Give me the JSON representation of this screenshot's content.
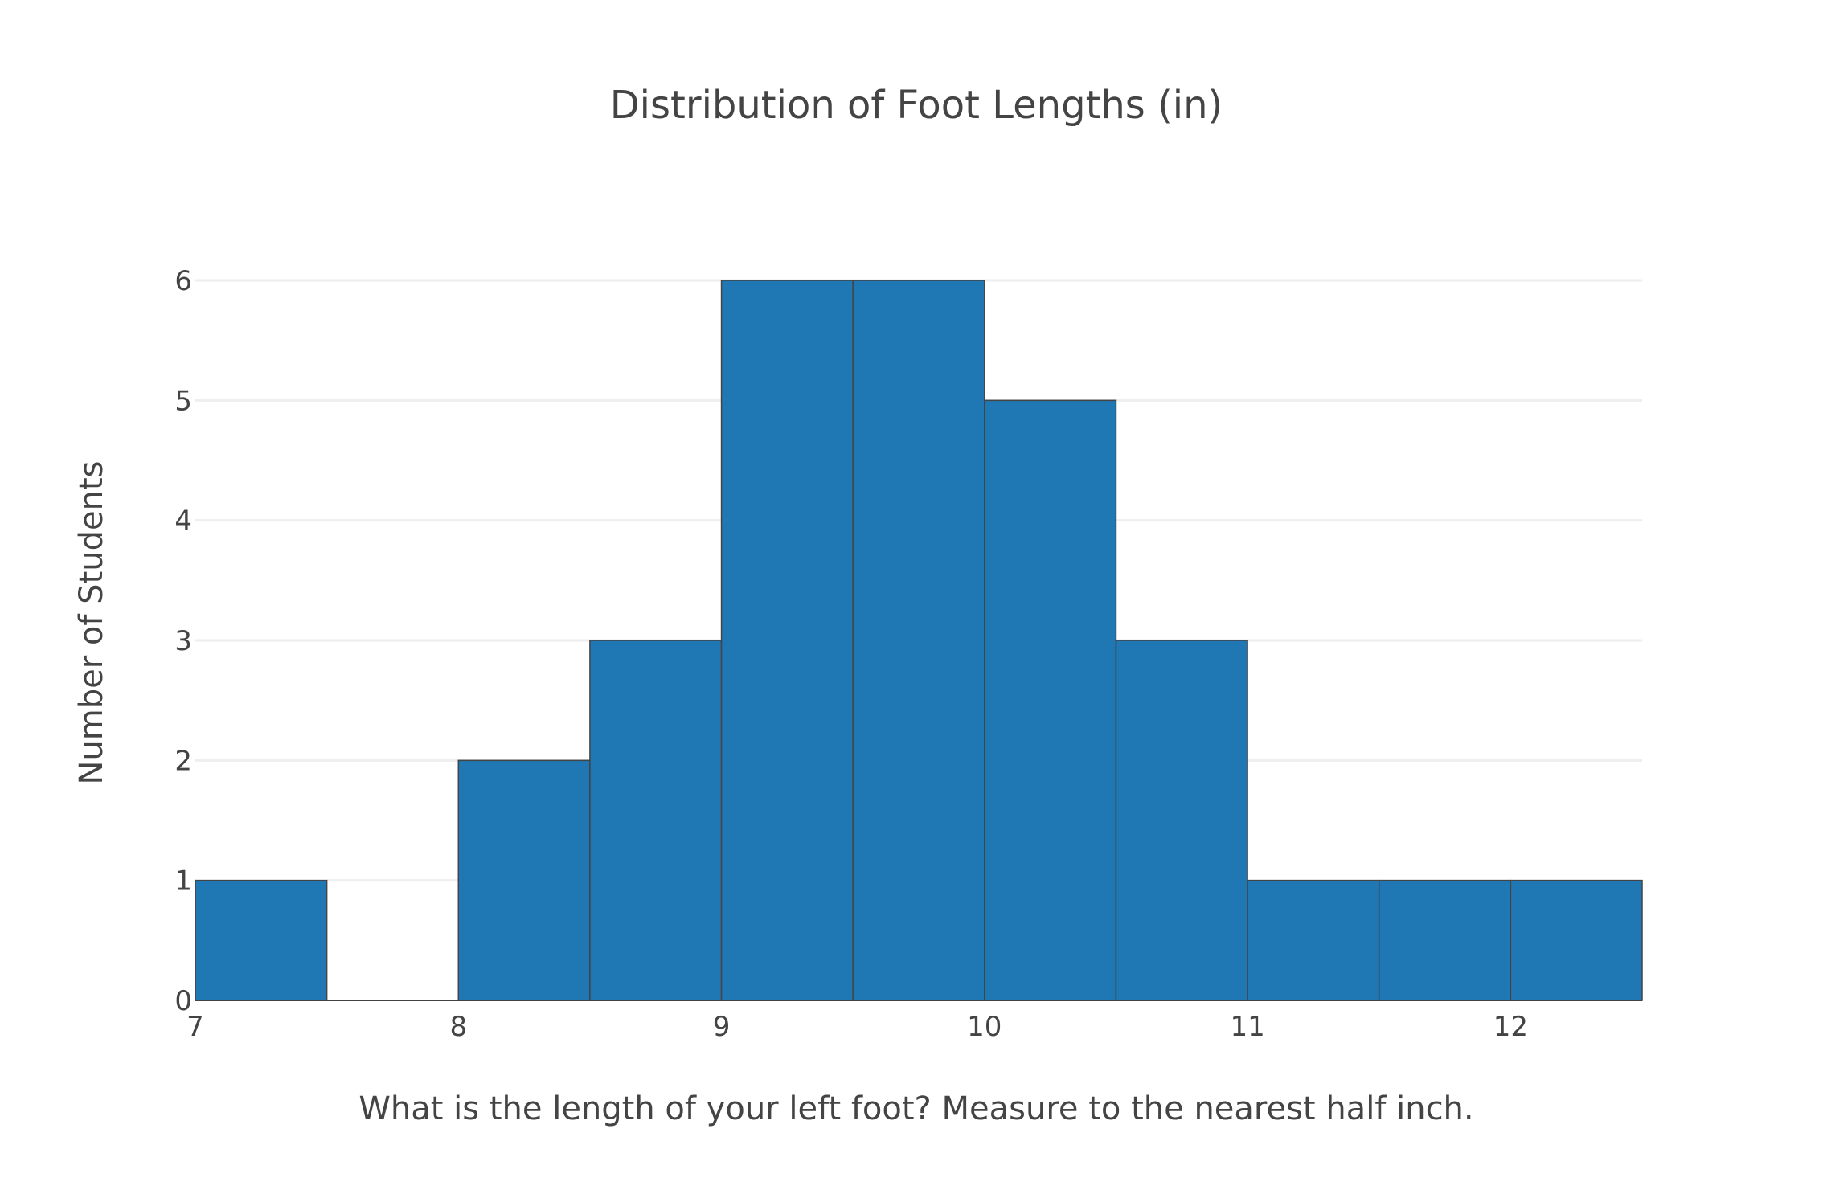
{
  "chart_data": {
    "type": "bar",
    "title": "Distribution of Foot Lengths (in)",
    "xlabel": "What is the length of your left foot? Measure to the nearest half inch.",
    "ylabel": "Number of Students",
    "bins": [
      {
        "start": 7.0,
        "end": 7.5,
        "count": 1
      },
      {
        "start": 7.5,
        "end": 8.0,
        "count": 0
      },
      {
        "start": 8.0,
        "end": 8.5,
        "count": 2
      },
      {
        "start": 8.5,
        "end": 9.0,
        "count": 3
      },
      {
        "start": 9.0,
        "end": 9.5,
        "count": 6
      },
      {
        "start": 9.5,
        "end": 10.0,
        "count": 6
      },
      {
        "start": 10.0,
        "end": 10.5,
        "count": 5
      },
      {
        "start": 10.5,
        "end": 11.0,
        "count": 3
      },
      {
        "start": 11.0,
        "end": 11.5,
        "count": 1
      },
      {
        "start": 11.5,
        "end": 12.0,
        "count": 1
      },
      {
        "start": 12.0,
        "end": 12.5,
        "count": 1
      }
    ],
    "xlim": [
      7,
      12.5
    ],
    "ylim": [
      0,
      6
    ],
    "xticks": [
      7,
      8,
      9,
      10,
      11,
      12
    ],
    "yticks": [
      0,
      1,
      2,
      3,
      4,
      5,
      6
    ],
    "grid": "horizontal",
    "bar_color": "#1f77b4",
    "bar_edge_color": "#444444",
    "grid_color": "#eeeeee",
    "text_color": "#444444"
  }
}
